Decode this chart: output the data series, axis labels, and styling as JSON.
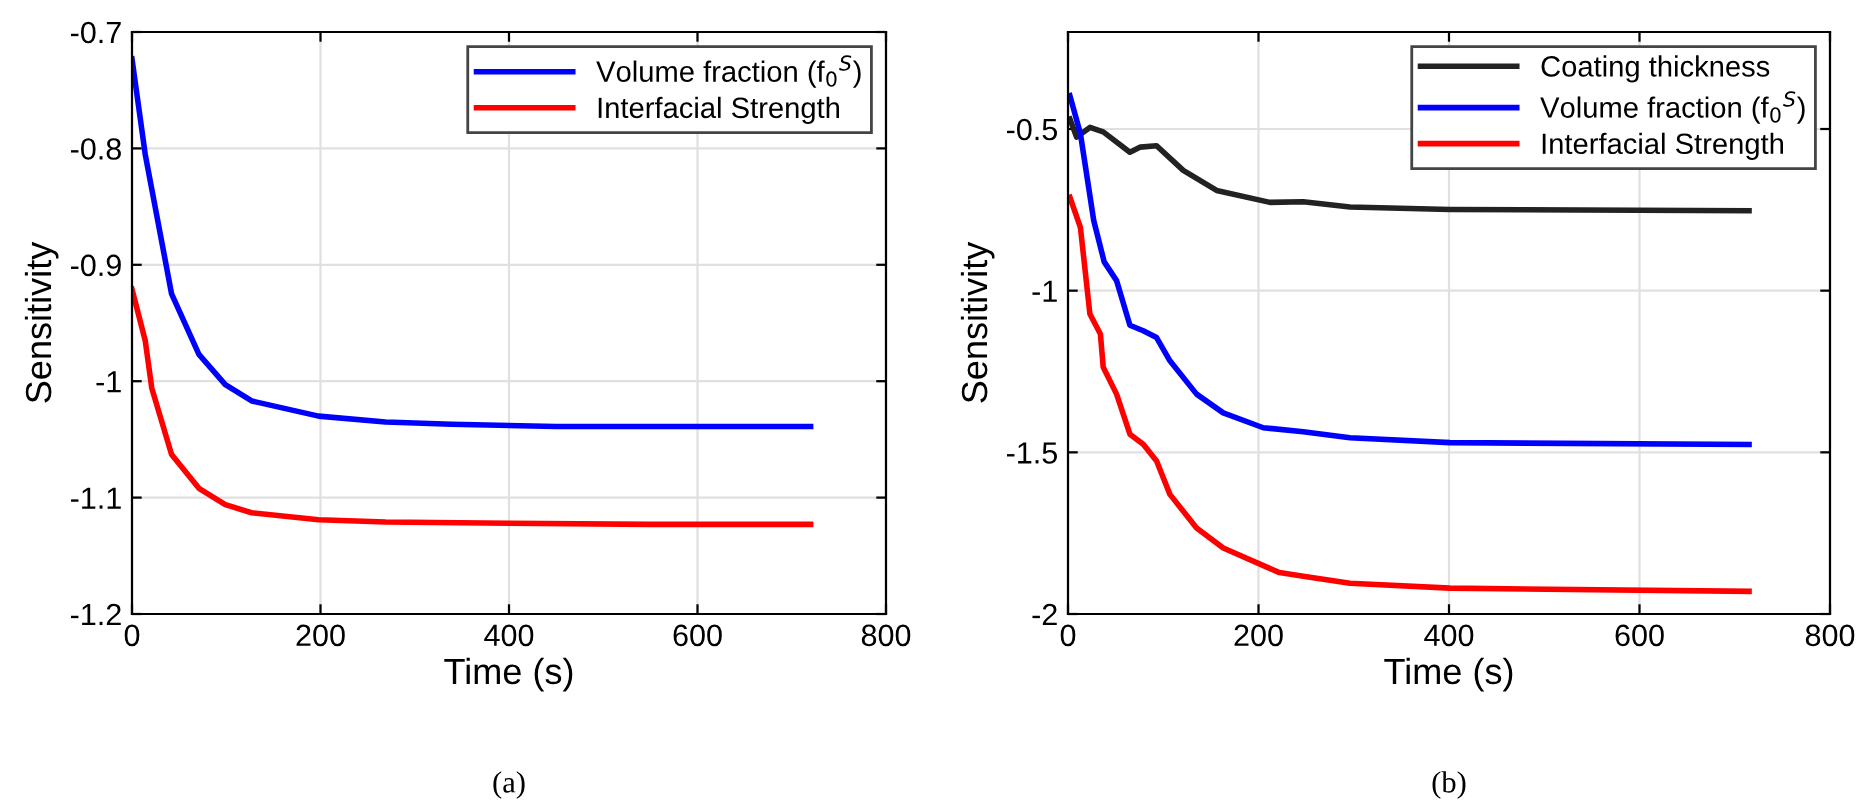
{
  "chart_data": [
    {
      "type": "line",
      "xlabel": "Time (s)",
      "ylabel": "Sensitivity",
      "xlim": [
        0,
        800
      ],
      "xticks": [
        0,
        200,
        400,
        600,
        800
      ],
      "ylim": [
        -1.2,
        -0.7
      ],
      "yticks": [
        -1.2,
        -1.1,
        -1,
        -0.9,
        -0.8,
        -0.7
      ],
      "grid": true,
      "legend": "top right",
      "annotations": [
        "(a)"
      ],
      "series": [
        {
          "name": "Volume fraction (f$_{0}$$^{S}$)",
          "color": "#0000ff",
          "x": [
            0,
            14,
            42,
            71,
            99,
            127,
            198,
            269,
            339,
            450,
            600,
            720
          ],
          "values": [
            -0.723,
            -0.805,
            -0.925,
            -0.977,
            -1.003,
            -1.017,
            -1.03,
            -1.035,
            -1.037,
            -1.039,
            -1.039,
            -1.039
          ]
        },
        {
          "name": "Interfacial Strength",
          "color": "#ff0000",
          "x": [
            0,
            14,
            21,
            42,
            71,
            99,
            127,
            198,
            269,
            400,
            550,
            720
          ],
          "values": [
            -0.921,
            -0.965,
            -1.006,
            -1.063,
            -1.092,
            -1.106,
            -1.113,
            -1.119,
            -1.121,
            -1.122,
            -1.123,
            -1.123
          ]
        }
      ]
    },
    {
      "type": "line",
      "xlabel": "Time (s)",
      "ylabel": "Sensitivity",
      "xlim": [
        0,
        800
      ],
      "xticks": [
        0,
        200,
        400,
        600,
        800
      ],
      "ylim": [
        -2,
        -0.2
      ],
      "yticks": [
        -2,
        -1.5,
        -1,
        -0.5
      ],
      "grid": true,
      "legend": "top right",
      "annotations": [
        "(b)"
      ],
      "series": [
        {
          "name": "Coating thickness",
          "color": "#222222",
          "x": [
            2,
            9,
            23,
            37,
            65,
            76,
            93,
            121,
            156,
            212,
            247,
            296,
            401,
            715
          ],
          "values": [
            -0.469,
            -0.525,
            -0.495,
            -0.509,
            -0.572,
            -0.556,
            -0.552,
            -0.628,
            -0.69,
            -0.727,
            -0.725,
            -0.741,
            -0.749,
            -0.753
          ]
        },
        {
          "name": "Volume fraction (f$_{0}$$^{S}$)",
          "color": "#0000ff",
          "x": [
            2,
            13,
            27,
            38,
            51,
            65,
            79,
            93,
            107,
            135,
            163,
            205,
            247,
            296,
            401,
            715
          ],
          "values": [
            -0.397,
            -0.514,
            -0.783,
            -0.911,
            -0.969,
            -1.107,
            -1.124,
            -1.145,
            -1.217,
            -1.32,
            -1.378,
            -1.424,
            -1.436,
            -1.455,
            -1.47,
            -1.476
          ]
        },
        {
          "name": "Interfacial Strength",
          "color": "#ff0000",
          "x": [
            2,
            13,
            23,
            34,
            37,
            51,
            65,
            79,
            93,
            107,
            135,
            163,
            222,
            247,
            296,
            401,
            715
          ],
          "values": [
            -0.711,
            -0.804,
            -1.072,
            -1.134,
            -1.237,
            -1.32,
            -1.444,
            -1.475,
            -1.527,
            -1.63,
            -1.734,
            -1.796,
            -1.872,
            -1.883,
            -1.905,
            -1.92,
            -1.93
          ]
        }
      ]
    }
  ]
}
